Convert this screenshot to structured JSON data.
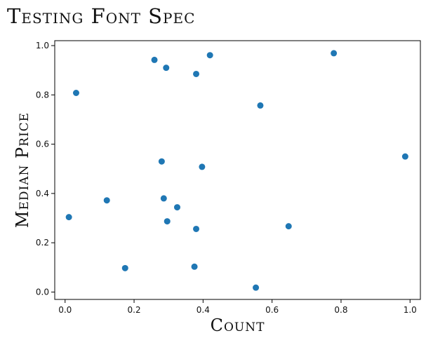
{
  "chart_data": {
    "type": "scatter",
    "title": "Testing Font Spec",
    "xlabel": "Count",
    "ylabel": "Median Price",
    "xlim": [
      -0.03,
      1.03
    ],
    "ylim": [
      -0.03,
      1.02
    ],
    "xticks": [
      0.0,
      0.2,
      0.4,
      0.6,
      0.8,
      1.0
    ],
    "yticks": [
      0.0,
      0.2,
      0.4,
      0.6,
      0.8,
      1.0
    ],
    "xtick_labels": [
      "0.0",
      "0.2",
      "0.4",
      "0.6",
      "0.8",
      "1.0"
    ],
    "ytick_labels": [
      "0.0",
      "0.2",
      "0.4",
      "0.6",
      "0.8",
      "1.0"
    ],
    "grid": false,
    "marker_color": "#1f77b4",
    "points": [
      {
        "x": 0.259,
        "y": 0.942
      },
      {
        "x": 0.293,
        "y": 0.91
      },
      {
        "x": 0.42,
        "y": 0.961
      },
      {
        "x": 0.38,
        "y": 0.885
      },
      {
        "x": 0.779,
        "y": 0.969
      },
      {
        "x": 0.032,
        "y": 0.808
      },
      {
        "x": 0.566,
        "y": 0.757
      },
      {
        "x": 0.986,
        "y": 0.55
      },
      {
        "x": 0.28,
        "y": 0.53
      },
      {
        "x": 0.397,
        "y": 0.508
      },
      {
        "x": 0.121,
        "y": 0.372
      },
      {
        "x": 0.286,
        "y": 0.38
      },
      {
        "x": 0.325,
        "y": 0.344
      },
      {
        "x": 0.011,
        "y": 0.304
      },
      {
        "x": 0.296,
        "y": 0.287
      },
      {
        "x": 0.38,
        "y": 0.256
      },
      {
        "x": 0.648,
        "y": 0.267
      },
      {
        "x": 0.174,
        "y": 0.097
      },
      {
        "x": 0.375,
        "y": 0.103
      },
      {
        "x": 0.553,
        "y": 0.018
      }
    ]
  }
}
